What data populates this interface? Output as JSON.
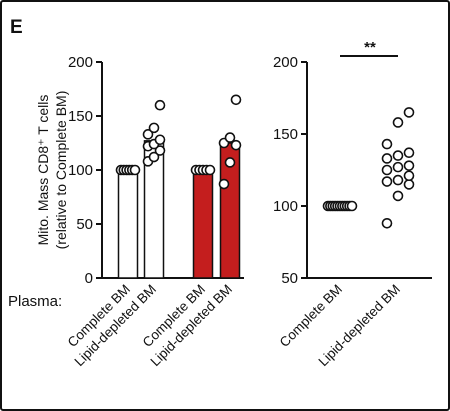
{
  "panel_label": "E",
  "plasma_label": "Plasma:",
  "chart_data": [
    {
      "type": "bar",
      "ylabel_line1": "Mito. Mass CD8⁺ T cells",
      "ylabel_line2": "(relative to Complete BM)",
      "ylim": [
        0,
        200
      ],
      "yticks": [
        0,
        50,
        100,
        150,
        200
      ],
      "categories": [
        "Complete BM",
        "Lipid-depleted BM",
        "Complete BM",
        "Lipid-depleted BM"
      ],
      "series": [
        {
          "values": [
            100,
            127,
            100,
            125
          ],
          "fill": [
            "#ffffff",
            "#ffffff",
            "#c41e1e",
            "#c41e1e"
          ]
        }
      ],
      "points": [
        [
          100,
          100,
          100,
          100,
          100,
          100
        ],
        [
          108,
          112,
          118,
          122,
          124,
          128,
          133,
          139,
          160
        ],
        [
          100,
          100,
          100,
          100,
          100
        ],
        [
          87,
          107,
          123,
          125,
          130,
          165
        ]
      ]
    },
    {
      "type": "scatter",
      "ylim": [
        50,
        200
      ],
      "yticks": [
        50,
        100,
        150,
        200
      ],
      "categories": [
        "Complete BM",
        "Lipid-depleted BM"
      ],
      "points": [
        [
          100,
          100,
          100,
          100,
          100,
          100,
          100,
          100,
          100,
          100,
          100
        ],
        [
          88,
          107,
          115,
          117,
          118,
          121,
          125,
          127,
          128,
          133,
          135,
          137,
          143,
          158,
          165
        ]
      ],
      "significance": "**"
    }
  ]
}
